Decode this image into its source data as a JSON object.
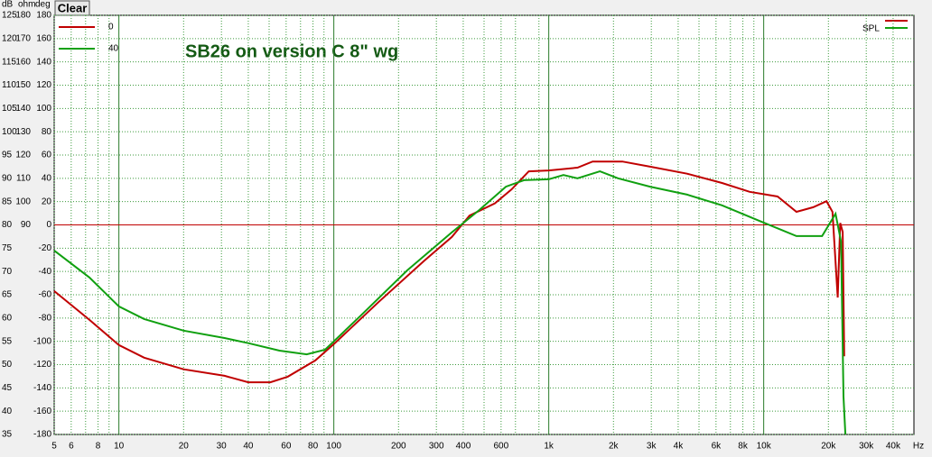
{
  "chart_data": {
    "type": "line",
    "title": "SB26 on version C 8\" wg",
    "button": "Clear",
    "legend_label": "SPL",
    "ylabel": "dB",
    "y2label": "ohm",
    "y3label": "deg",
    "xlabel": "Hz",
    "xscale": "log",
    "xlim": [
      5,
      50000
    ],
    "xticks": [
      5,
      6,
      8,
      10,
      20,
      30,
      40,
      60,
      80,
      100,
      200,
      300,
      400,
      600,
      {
        "value": 1000,
        "label": "1k"
      },
      {
        "value": 2000,
        "label": "2k"
      },
      {
        "value": 3000,
        "label": "3k"
      },
      {
        "value": 4000,
        "label": "4k"
      },
      {
        "value": 6000,
        "label": "6k"
      },
      {
        "value": 8000,
        "label": "8k"
      },
      {
        "value": 10000,
        "label": "10k"
      },
      {
        "value": 20000,
        "label": "20k"
      },
      {
        "value": 30000,
        "label": "30k"
      },
      {
        "value": 40000,
        "label": "40k"
      }
    ],
    "xminorticks": [
      7,
      9,
      50,
      70,
      90,
      500,
      700,
      900,
      5000,
      7000,
      9000
    ],
    "ylim": [
      35,
      125
    ],
    "yticks": [
      35,
      40,
      45,
      50,
      55,
      60,
      65,
      70,
      75,
      80,
      85,
      90,
      95,
      100,
      105,
      110,
      115,
      120,
      125
    ],
    "y2lim": [
      0,
      180
    ],
    "y2ticks": [
      90,
      100,
      110,
      120,
      130,
      140,
      150,
      160,
      170,
      180
    ],
    "y3lim": [
      -180,
      180
    ],
    "y3ticks": [
      -180,
      -160,
      -140,
      -120,
      -100,
      -80,
      -60,
      -40,
      -20,
      0,
      20,
      40,
      60,
      80,
      100,
      120,
      140,
      160,
      180
    ],
    "grid": true,
    "reference_line": {
      "value": 80,
      "color": "#c00000"
    },
    "series": [
      {
        "name": "0",
        "color": "#c00000",
        "x": [
          5,
          7.3,
          10,
          13.1,
          20,
          31,
          40,
          50.7,
          61,
          82,
          100,
          162,
          262,
          354,
          428,
          561,
          671,
          807,
          1000,
          1360,
          1600,
          2200,
          2960,
          4400,
          6400,
          8600,
          11600,
          14200,
          17000,
          19600,
          20900,
          22100,
          22700,
          23300,
          23700
        ],
        "values": [
          65.8,
          59.6,
          54.2,
          51.5,
          49,
          47.6,
          46.2,
          46.2,
          47.4,
          50.9,
          54.4,
          63.5,
          72.2,
          77.4,
          82,
          84.6,
          87.6,
          91.5,
          91.7,
          92.3,
          93.6,
          93.6,
          92.5,
          91,
          89,
          87.1,
          86.1,
          82.8,
          83.8,
          85.1,
          82.8,
          64.4,
          80.4,
          78.5,
          51.8
        ]
      },
      {
        "name": "40",
        "color": "#10a010",
        "x": [
          5,
          7.3,
          10,
          13.1,
          20,
          31,
          40,
          55.9,
          74.8,
          91,
          134,
          219,
          354,
          475,
          632,
          767,
          1000,
          1170,
          1360,
          1730,
          2100,
          2960,
          4400,
          6400,
          9500,
          14200,
          18700,
          21600,
          22900,
          23500,
          24000
        ],
        "values": [
          74.5,
          68.7,
          62.5,
          59.8,
          57.3,
          55.7,
          54.6,
          53,
          52.2,
          53.2,
          60.6,
          70.2,
          78.4,
          83.2,
          88.2,
          89.6,
          89.8,
          90.7,
          90,
          91.5,
          90,
          88.2,
          86.5,
          84.2,
          80.9,
          77.6,
          77.6,
          82.4,
          76.4,
          43.1,
          35
        ]
      }
    ]
  }
}
